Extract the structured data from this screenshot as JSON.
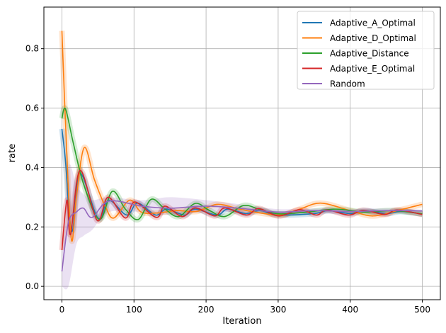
{
  "chart_data": {
    "type": "line",
    "title": "",
    "xlabel": "Iteration",
    "ylabel": "rate",
    "xlim": [
      -25,
      525
    ],
    "ylim": [
      -0.045,
      0.94
    ],
    "xticks": [
      0,
      100,
      200,
      300,
      400,
      500
    ],
    "yticks": [
      0.0,
      0.2,
      0.4,
      0.6,
      0.8
    ],
    "xtick_labels": [
      "0",
      "100",
      "200",
      "300",
      "400",
      "500"
    ],
    "ytick_labels": [
      "0.0",
      "0.2",
      "0.4",
      "0.6",
      "0.8"
    ],
    "grid": true,
    "legend_position": "top-right",
    "series": [
      {
        "name": "Adaptive_A_Optimal",
        "color": "#1f77b4",
        "x": [
          0,
          5,
          10,
          15,
          25,
          50,
          65,
          90,
          105,
          130,
          145,
          170,
          185,
          215,
          230,
          255,
          275,
          300,
          350,
          370,
          400,
          420,
          450,
          470,
          500
        ],
        "y": [
          0.53,
          0.42,
          0.25,
          0.19,
          0.38,
          0.23,
          0.29,
          0.24,
          0.28,
          0.24,
          0.26,
          0.24,
          0.26,
          0.24,
          0.26,
          0.245,
          0.255,
          0.24,
          0.245,
          0.255,
          0.245,
          0.255,
          0.245,
          0.252,
          0.244
        ]
      },
      {
        "name": "Adaptive_D_Optimal",
        "color": "#ff7f0e",
        "x": [
          0,
          5,
          13,
          20,
          31,
          45,
          60,
          72,
          94,
          110,
          133,
          160,
          187,
          216,
          250,
          301,
          330,
          359,
          400,
          432,
          470,
          500
        ],
        "y": [
          0.86,
          0.55,
          0.16,
          0.3,
          0.467,
          0.36,
          0.27,
          0.23,
          0.29,
          0.25,
          0.247,
          0.255,
          0.252,
          0.276,
          0.258,
          0.24,
          0.26,
          0.28,
          0.255,
          0.237,
          0.258,
          0.276
        ]
      },
      {
        "name": "Adaptive_Distance",
        "color": "#2ca02c",
        "x": [
          0,
          5,
          16,
          30,
          52,
          70,
          88,
          106,
          124,
          143,
          162,
          185,
          205,
          226,
          252,
          275,
          301,
          340,
          380,
          420,
          460,
          500
        ],
        "y": [
          0.565,
          0.597,
          0.48,
          0.345,
          0.225,
          0.32,
          0.26,
          0.225,
          0.293,
          0.26,
          0.235,
          0.279,
          0.255,
          0.235,
          0.272,
          0.258,
          0.244,
          0.25,
          0.26,
          0.25,
          0.255,
          0.244
        ]
      },
      {
        "name": "Adaptive_E_Optimal",
        "color": "#d62728",
        "x": [
          0,
          7,
          12,
          25,
          49,
          64,
          88,
          101,
          131,
          143,
          167,
          185,
          212,
          226,
          256,
          273,
          301,
          330,
          353,
          368,
          398,
          418,
          448,
          465,
          500
        ],
        "y": [
          0.122,
          0.29,
          0.175,
          0.39,
          0.222,
          0.3,
          0.23,
          0.284,
          0.232,
          0.27,
          0.235,
          0.264,
          0.237,
          0.264,
          0.24,
          0.262,
          0.237,
          0.258,
          0.24,
          0.257,
          0.24,
          0.256,
          0.242,
          0.257,
          0.242
        ]
      },
      {
        "name": "Random",
        "color": "#9467bd",
        "x": [
          0,
          9,
          20,
          30,
          42,
          65,
          111,
          150,
          200,
          250,
          300,
          350,
          400,
          450,
          500
        ],
        "y": [
          0.05,
          0.215,
          0.25,
          0.263,
          0.232,
          0.287,
          0.27,
          0.263,
          0.27,
          0.262,
          0.25,
          0.255,
          0.252,
          0.255,
          0.254
        ],
        "band_lower": [
          0.0,
          0.0,
          0.14,
          0.17,
          0.19,
          0.25,
          0.25,
          0.24,
          0.25,
          0.25,
          0.24,
          0.245,
          0.245,
          0.248,
          0.25
        ],
        "band_upper": [
          0.1,
          0.4,
          0.34,
          0.31,
          0.29,
          0.3,
          0.29,
          0.3,
          0.29,
          0.275,
          0.26,
          0.262,
          0.26,
          0.262,
          0.258
        ]
      }
    ]
  }
}
